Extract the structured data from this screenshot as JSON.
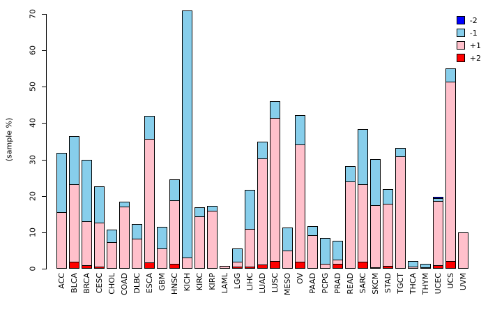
{
  "figure": {
    "background": "#FFFFFF",
    "axis_color": "#000000",
    "bar_border_color": "#000000"
  },
  "y_axis": {
    "label": "(sample %)",
    "tick_labels": [
      "0",
      "10",
      "20",
      "30",
      "40",
      "50",
      "60",
      "70"
    ]
  },
  "chart_data": {
    "type": "bar",
    "stacked": true,
    "orientation": "vertical",
    "title": "",
    "xlabel": "",
    "ylabel": "(sample %)",
    "ylim": [
      0,
      70
    ],
    "yticks": [
      0,
      10,
      20,
      30,
      40,
      50,
      60,
      70
    ],
    "grid": false,
    "legend_position": "top-right",
    "categories": [
      "ACC",
      "BLCA",
      "BRCA",
      "CESC",
      "CHOL",
      "COAD",
      "DLBC",
      "ESCA",
      "GBM",
      "HNSC",
      "KICH",
      "KIRC",
      "KIRP",
      "LAML",
      "LGG",
      "LIHC",
      "LUAD",
      "LUSC",
      "MESO",
      "OV",
      "PAAD",
      "PCPG",
      "PRAD",
      "READ",
      "SARC",
      "SKCM",
      "STAD",
      "TGCT",
      "THCA",
      "THYM",
      "UCEC",
      "UCS",
      "UVM"
    ],
    "series": [
      {
        "name": "-2",
        "color": "#0000FF",
        "values": [
          0,
          0,
          0,
          0,
          0,
          0,
          0,
          0,
          0,
          0,
          0,
          0,
          0,
          0,
          0,
          0,
          0,
          0,
          0,
          0,
          0,
          0,
          0,
          0,
          0,
          0,
          0,
          0,
          0,
          0,
          0.6,
          0,
          0
        ]
      },
      {
        "name": "-1",
        "color": "#87CEEB",
        "values": [
          16.5,
          13.5,
          17.1,
          10.2,
          3.6,
          1.6,
          4.3,
          6.5,
          6.2,
          6.0,
          68.0,
          2.7,
          1.5,
          0,
          3.8,
          11.0,
          4.8,
          4.7,
          6.5,
          8.2,
          2.7,
          7.2,
          5.4,
          4.4,
          15.4,
          12.8,
          4.2,
          2.5,
          1.8,
          1.2,
          1.0,
          3.8,
          0
        ]
      },
      {
        "name": "+1",
        "color": "#FFC0CB",
        "values": [
          15.5,
          21.5,
          12.3,
          12.2,
          7.3,
          17.1,
          8.2,
          34.1,
          5.5,
          17.6,
          3.0,
          14.3,
          15.9,
          0.7,
          1.5,
          10.5,
          29.3,
          39.6,
          4.9,
          32.5,
          9.3,
          1.4,
          1.3,
          24.0,
          21.5,
          17.3,
          17.2,
          30.8,
          0.6,
          0.2,
          17.8,
          49.5,
          9.9
        ]
      },
      {
        "name": "+2",
        "color": "#FF0000",
        "values": [
          0,
          2.0,
          0.9,
          0.6,
          0,
          0,
          0,
          1.7,
          0,
          1.4,
          0,
          0,
          0,
          0,
          0.5,
          0.5,
          1.2,
          2.1,
          0,
          2.0,
          0,
          0,
          1.3,
          0,
          2.0,
          0.4,
          0.7,
          0,
          0,
          0,
          1.0,
          2.1,
          0
        ]
      }
    ]
  }
}
